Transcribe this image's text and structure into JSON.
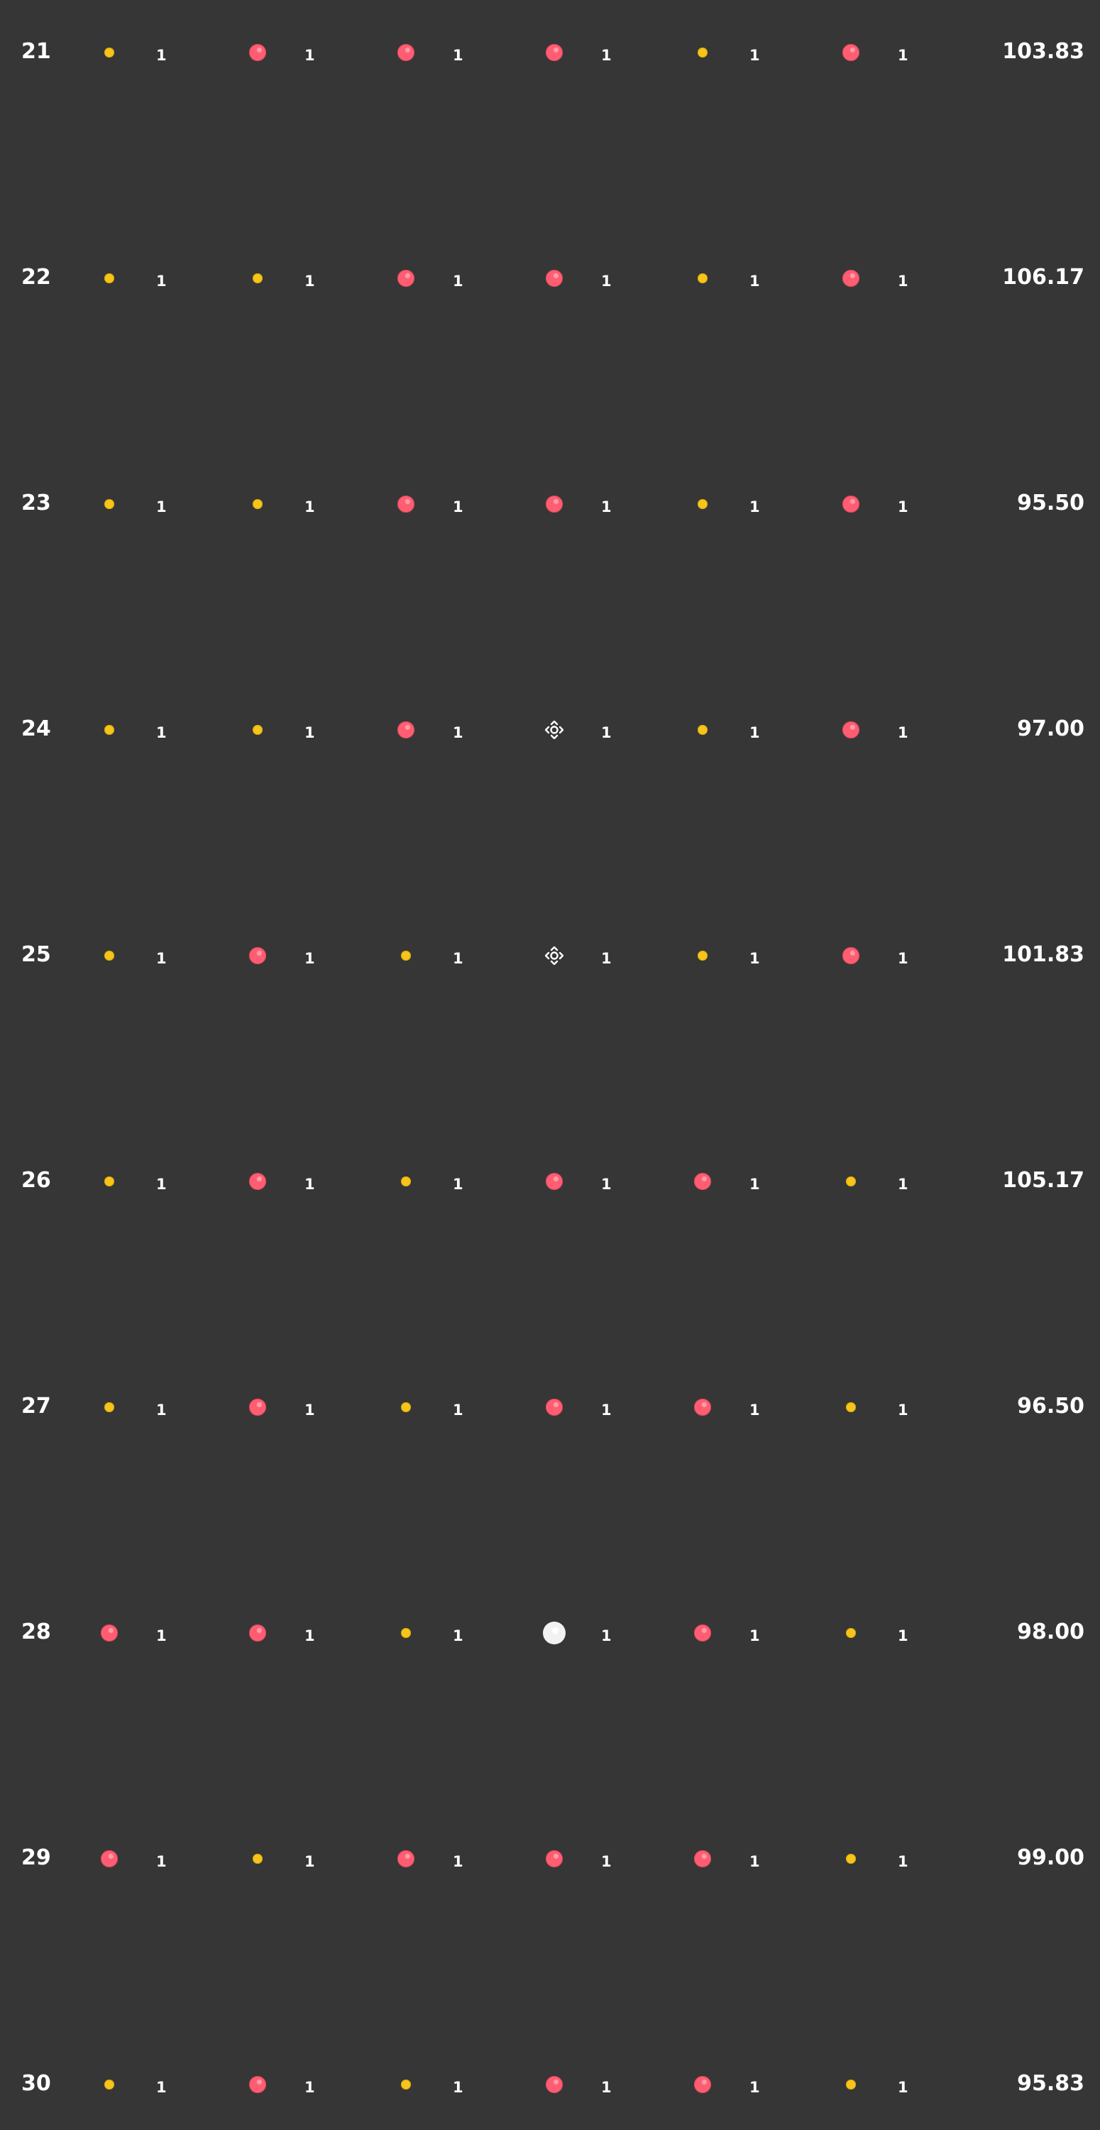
{
  "rows": [
    {
      "num": "21",
      "score": "103.83",
      "cells": [
        {
          "item": "gold",
          "count": "1"
        },
        {
          "item": "red",
          "count": "1"
        },
        {
          "item": "red",
          "count": "1"
        },
        {
          "item": "red",
          "count": "1"
        },
        {
          "item": "gold",
          "count": "1"
        },
        {
          "item": "red",
          "count": "1"
        }
      ]
    },
    {
      "num": "22",
      "score": "106.17",
      "cells": [
        {
          "item": "gold",
          "count": "1"
        },
        {
          "item": "gold",
          "count": "1"
        },
        {
          "item": "red",
          "count": "1"
        },
        {
          "item": "red",
          "count": "1"
        },
        {
          "item": "gold",
          "count": "1"
        },
        {
          "item": "red",
          "count": "1"
        }
      ]
    },
    {
      "num": "23",
      "score": "95.50",
      "cells": [
        {
          "item": "gold",
          "count": "1"
        },
        {
          "item": "gold",
          "count": "1"
        },
        {
          "item": "red",
          "count": "1"
        },
        {
          "item": "red",
          "count": "1"
        },
        {
          "item": "gold",
          "count": "1"
        },
        {
          "item": "red",
          "count": "1"
        }
      ]
    },
    {
      "num": "24",
      "score": "97.00",
      "cells": [
        {
          "item": "gold",
          "count": "1"
        },
        {
          "item": "gold",
          "count": "1"
        },
        {
          "item": "red",
          "count": "1"
        },
        {
          "item": "move",
          "count": "1"
        },
        {
          "item": "gold",
          "count": "1"
        },
        {
          "item": "red",
          "count": "1"
        }
      ]
    },
    {
      "num": "25",
      "score": "101.83",
      "cells": [
        {
          "item": "gold",
          "count": "1"
        },
        {
          "item": "red",
          "count": "1"
        },
        {
          "item": "gold",
          "count": "1"
        },
        {
          "item": "move",
          "count": "1"
        },
        {
          "item": "gold",
          "count": "1"
        },
        {
          "item": "red",
          "count": "1"
        }
      ]
    },
    {
      "num": "26",
      "score": "105.17",
      "cells": [
        {
          "item": "gold",
          "count": "1"
        },
        {
          "item": "red",
          "count": "1"
        },
        {
          "item": "gold",
          "count": "1"
        },
        {
          "item": "red",
          "count": "1"
        },
        {
          "item": "red",
          "count": "1"
        },
        {
          "item": "gold",
          "count": "1"
        }
      ]
    },
    {
      "num": "27",
      "score": "96.50",
      "cells": [
        {
          "item": "gold",
          "count": "1"
        },
        {
          "item": "red",
          "count": "1"
        },
        {
          "item": "gold",
          "count": "1"
        },
        {
          "item": "red",
          "count": "1"
        },
        {
          "item": "red",
          "count": "1"
        },
        {
          "item": "gold",
          "count": "1"
        }
      ]
    },
    {
      "num": "28",
      "score": "98.00",
      "cells": [
        {
          "item": "red",
          "count": "1"
        },
        {
          "item": "red",
          "count": "1"
        },
        {
          "item": "gold",
          "count": "1"
        },
        {
          "item": "white",
          "count": "1"
        },
        {
          "item": "red",
          "count": "1"
        },
        {
          "item": "gold",
          "count": "1"
        }
      ]
    },
    {
      "num": "29",
      "score": "99.00",
      "cells": [
        {
          "item": "red",
          "count": "1"
        },
        {
          "item": "gold",
          "count": "1"
        },
        {
          "item": "red",
          "count": "1"
        },
        {
          "item": "red",
          "count": "1"
        },
        {
          "item": "red",
          "count": "1"
        },
        {
          "item": "gold",
          "count": "1"
        }
      ]
    },
    {
      "num": "30",
      "score": "95.83",
      "cells": [
        {
          "item": "gold",
          "count": "1"
        },
        {
          "item": "red",
          "count": "1"
        },
        {
          "item": "gold",
          "count": "1"
        },
        {
          "item": "red",
          "count": "1"
        },
        {
          "item": "red",
          "count": "1"
        },
        {
          "item": "gold",
          "count": "1"
        }
      ]
    }
  ],
  "items": {
    "gold": {
      "icon": "gold-coin-icon",
      "color": "#f6c519"
    },
    "red": {
      "icon": "red-gem-icon",
      "color": "#ff5d72"
    },
    "white": {
      "icon": "white-orb-icon",
      "color": "#ffffff"
    },
    "move": {
      "icon": "move-arrows-icon",
      "color": "#ffffff"
    }
  }
}
